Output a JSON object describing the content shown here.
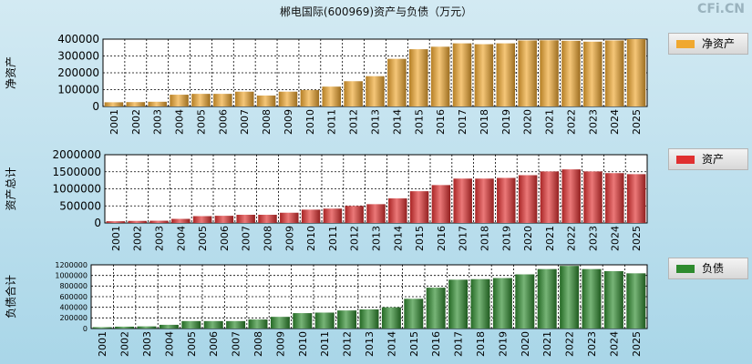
{
  "title": "郴电国际(600969)资产与负债（万元）",
  "watermark": "CFi.CN",
  "chart_data": [
    {
      "type": "bar",
      "ylabel": "净资产",
      "legend": "净资产",
      "color": "#f0a830",
      "ylim": [
        0,
        400000
      ],
      "yticks": [
        0,
        100000,
        200000,
        300000,
        400000
      ],
      "categories": [
        "2001",
        "2002",
        "2003",
        "2004",
        "2005",
        "2006",
        "2007",
        "2008",
        "2009",
        "2010",
        "2011",
        "2012",
        "2013",
        "2014",
        "2015",
        "2016",
        "2017",
        "2018",
        "2019",
        "2020",
        "2021",
        "2022",
        "2023",
        "2024",
        "2025"
      ],
      "values": [
        25000,
        26000,
        28000,
        70000,
        75000,
        75000,
        88000,
        65000,
        88000,
        98000,
        118000,
        150000,
        180000,
        283000,
        340000,
        355000,
        375000,
        370000,
        375000,
        392000,
        393000,
        390000,
        385000,
        392000,
        400000
      ]
    },
    {
      "type": "bar",
      "ylabel": "资产总计",
      "legend": "资产",
      "color": "#e03030",
      "ylim": [
        0,
        2000000
      ],
      "yticks": [
        0,
        500000,
        1000000,
        1500000,
        2000000
      ],
      "categories": [
        "2001",
        "2002",
        "2003",
        "2004",
        "2005",
        "2006",
        "2007",
        "2008",
        "2009",
        "2010",
        "2011",
        "2012",
        "2013",
        "2014",
        "2015",
        "2016",
        "2017",
        "2018",
        "2019",
        "2020",
        "2021",
        "2022",
        "2023",
        "2024",
        "2025"
      ],
      "values": [
        50000,
        60000,
        65000,
        120000,
        200000,
        210000,
        240000,
        240000,
        300000,
        390000,
        420000,
        500000,
        550000,
        720000,
        930000,
        1110000,
        1300000,
        1300000,
        1320000,
        1400000,
        1510000,
        1570000,
        1510000,
        1460000,
        1430000
      ]
    },
    {
      "type": "bar",
      "ylabel": "负债合计",
      "legend": "负债",
      "color": "#2e8b2e",
      "ylim": [
        0,
        1200000
      ],
      "yticks": [
        0,
        200000,
        400000,
        600000,
        800000,
        1000000,
        1200000
      ],
      "categories": [
        "2001",
        "2002",
        "2003",
        "2004",
        "2005",
        "2006",
        "2007",
        "2008",
        "2009",
        "2010",
        "2011",
        "2012",
        "2013",
        "2014",
        "2015",
        "2016",
        "2017",
        "2018",
        "2019",
        "2020",
        "2021",
        "2022",
        "2023",
        "2024",
        "2025"
      ],
      "values": [
        25000,
        35000,
        40000,
        70000,
        140000,
        140000,
        140000,
        170000,
        220000,
        290000,
        300000,
        340000,
        360000,
        400000,
        560000,
        770000,
        920000,
        930000,
        950000,
        1020000,
        1120000,
        1180000,
        1120000,
        1080000,
        1040000
      ]
    }
  ]
}
